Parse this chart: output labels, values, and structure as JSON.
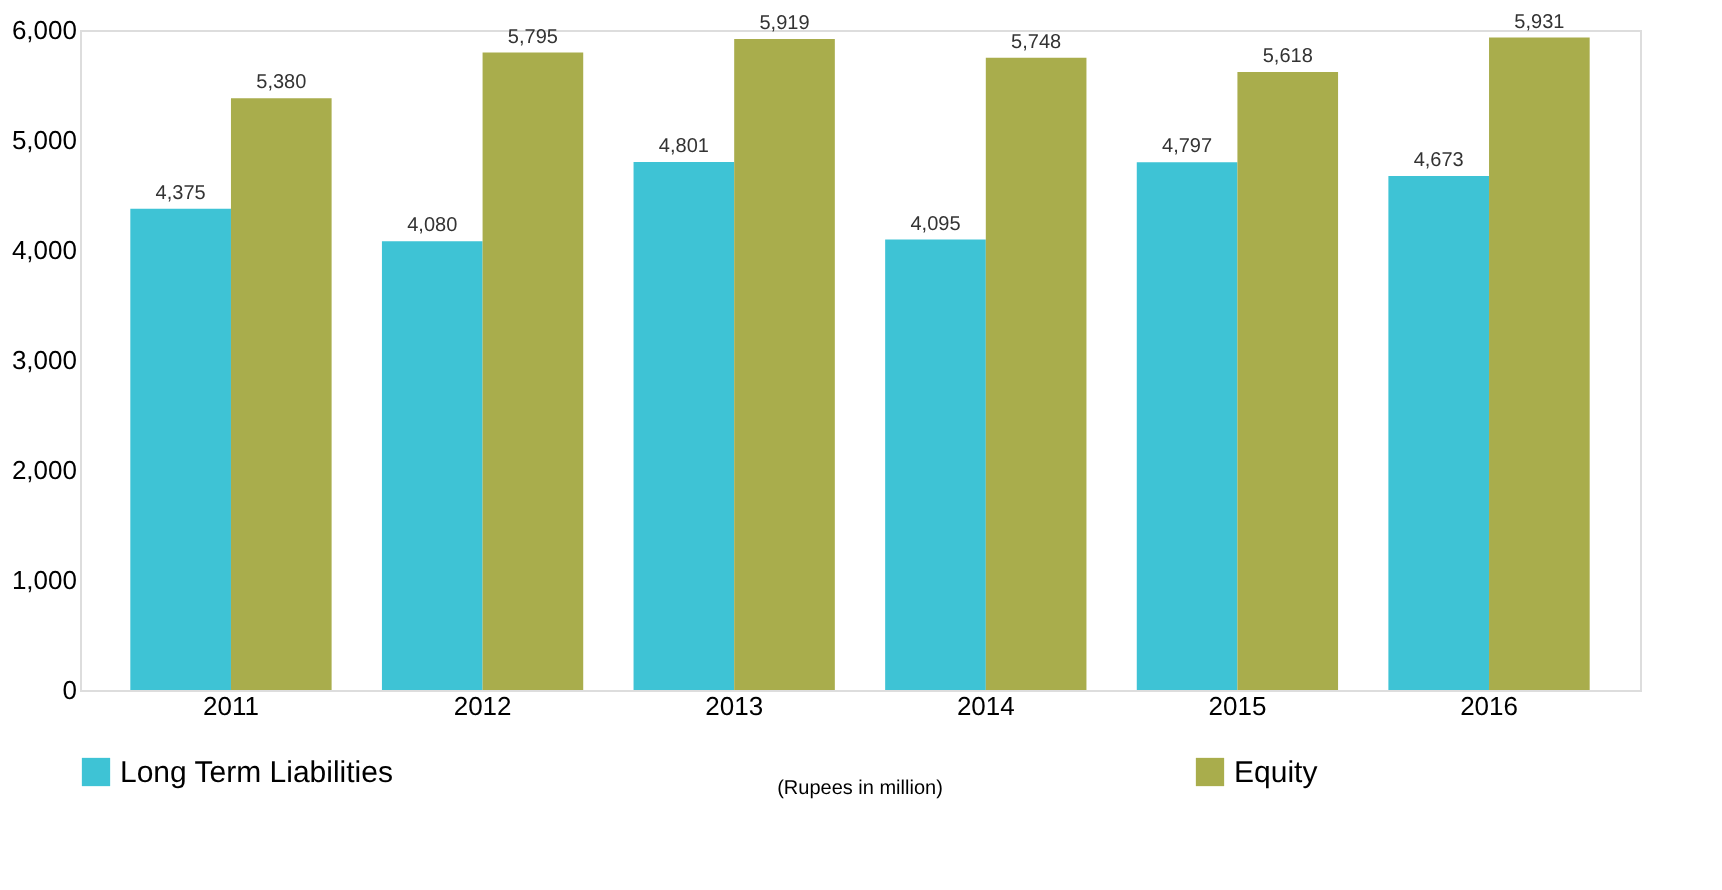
{
  "chart_data": {
    "type": "bar",
    "categories": [
      "2011",
      "2012",
      "2013",
      "2014",
      "2015",
      "2016"
    ],
    "series": [
      {
        "name": "Long Term Liabilities",
        "color": "#3ec3d5",
        "values": [
          4375,
          4080,
          4801,
          4095,
          4797,
          4673
        ],
        "value_labels": [
          "4,375",
          "4,080",
          "4,801",
          "4,095",
          "4,797",
          "4,673"
        ]
      },
      {
        "name": "Equity",
        "color": "#a9ad4c",
        "values": [
          5380,
          5795,
          5919,
          5748,
          5618,
          5931
        ],
        "value_labels": [
          "5,380",
          "5,795",
          "5,919",
          "5,748",
          "5,618",
          "5,931"
        ]
      }
    ],
    "ylim": [
      0,
      6000
    ],
    "yticks": [
      0,
      {
        "value": 1000,
        "label": "1,000"
      },
      {
        "value": 2000,
        "label": "2,000"
      },
      {
        "value": 3000,
        "label": "3,000"
      },
      {
        "value": 4000,
        "label": "4,000"
      },
      {
        "value": 5000,
        "label": "5,000"
      },
      {
        "value": 6000,
        "label": "6,000"
      }
    ],
    "grid": false,
    "legend": "bottom",
    "annotations": [
      "(Rupees in million)"
    ]
  }
}
